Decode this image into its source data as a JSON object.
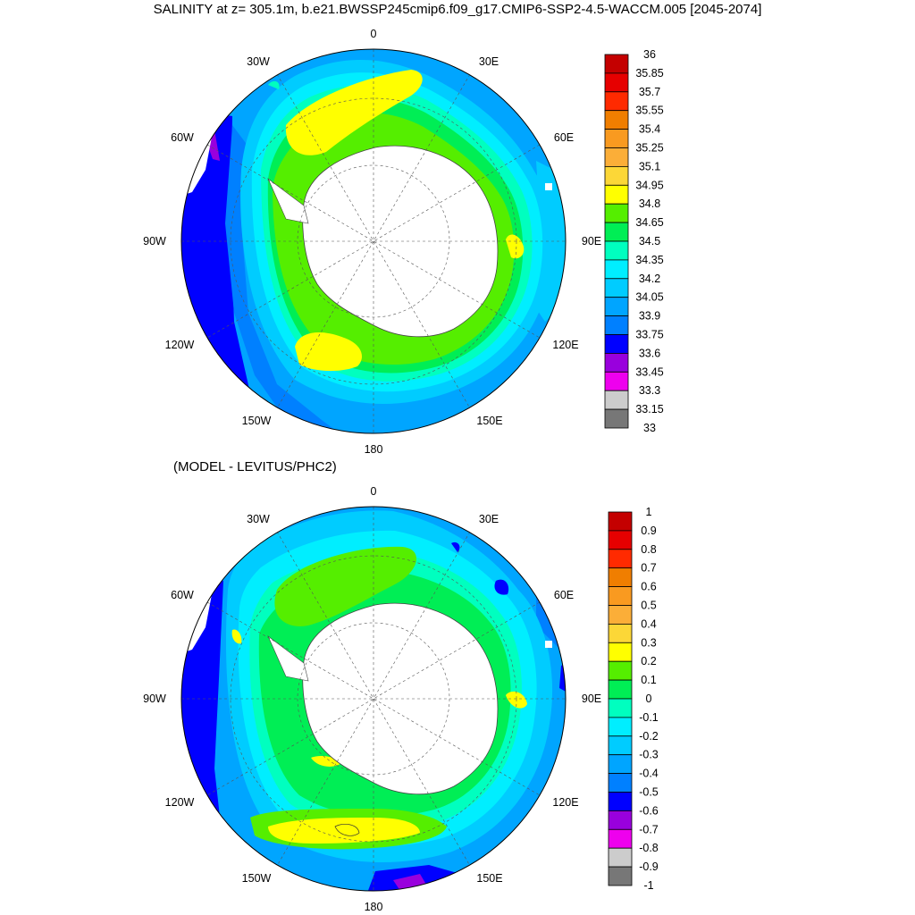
{
  "title": "SALINITY at z= 305.1m, b.e21.BWSSP245cmip6.f09_g17.CMIP6-SSP2-4.5-WACCM.005 [2045-2074]",
  "diff_title": "(MODEL - LEVITUS/PHC2)",
  "longitude_labels": {
    "lon_0": "0",
    "lon_30E": "30E",
    "lon_60E": "60E",
    "lon_90E": "90E",
    "lon_120E": "120E",
    "lon_150E": "150E",
    "lon_180": "180",
    "lon_150W": "150W",
    "lon_120W": "120W",
    "lon_90W": "90W",
    "lon_60W": "60W",
    "lon_30W": "30W"
  },
  "colorbar_top": {
    "labels": [
      "36",
      "35.85",
      "35.7",
      "35.55",
      "35.4",
      "35.25",
      "35.1",
      "34.95",
      "34.8",
      "34.65",
      "34.5",
      "34.35",
      "34.2",
      "34.05",
      "33.9",
      "33.75",
      "33.6",
      "33.45",
      "33.3",
      "33.15",
      "33"
    ],
    "colors": [
      "#c40000",
      "#e60000",
      "#ff2a00",
      "#f07e00",
      "#f99a20",
      "#fbae38",
      "#fcd737",
      "#ffff00",
      "#55ee00",
      "#00ee55",
      "#00ffbf",
      "#00eeff",
      "#00ccff",
      "#00a5ff",
      "#0080ff",
      "#0000ff",
      "#9900dd",
      "#ee00ee",
      "#cccccc",
      "#777777"
    ]
  },
  "colorbar_bottom": {
    "labels": [
      "1",
      "0.9",
      "0.8",
      "0.7",
      "0.6",
      "0.5",
      "0.4",
      "0.3",
      "0.2",
      "0.1",
      "0",
      "-0.1",
      "-0.2",
      "-0.3",
      "-0.4",
      "-0.5",
      "-0.6",
      "-0.7",
      "-0.8",
      "-0.9",
      "-1"
    ],
    "colors": [
      "#c40000",
      "#e60000",
      "#ff2a00",
      "#f07e00",
      "#f99a20",
      "#fbae38",
      "#fcd737",
      "#ffff00",
      "#55ee00",
      "#00ee55",
      "#00ffbf",
      "#00eeff",
      "#00ccff",
      "#00a5ff",
      "#0080ff",
      "#0000ff",
      "#9900dd",
      "#ee00ee",
      "#cccccc",
      "#777777"
    ]
  },
  "colors": {
    "deep_blue": "#0000ff",
    "blue": "#0080ff",
    "light_blue": "#00a5ff",
    "sky": "#00ccff",
    "cyan": "#00eeff",
    "aqua": "#00ffbf",
    "green": "#00ee55",
    "lime": "#55ee00",
    "yellow": "#ffff00",
    "purple": "#9900dd",
    "magenta": "#ee00ee",
    "land": "#ffffff"
  }
}
